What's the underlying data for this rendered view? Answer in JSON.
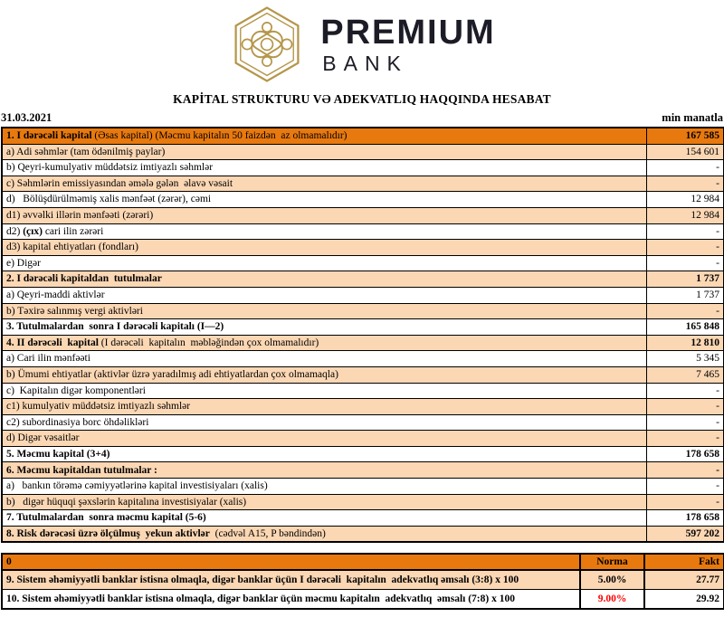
{
  "logo": {
    "brand_top": "PREMIUM",
    "brand_bottom": "BANK"
  },
  "title": "KAPİTAL STRUKTURU VƏ ADEKVATLIQ HAQQINDA HESABAT",
  "date": "31.03.2021",
  "unit_label": "min manatla",
  "colors": {
    "orange": "#E8790F",
    "peach": "#FBD7B4",
    "red": "#FF0000",
    "gold": "#B5964A",
    "logo_text": "#1C1C26"
  },
  "main_table": {
    "rows": [
      {
        "bg": "orange",
        "indent": 0,
        "value": "167 585",
        "value_bold": true,
        "segments": [
          {
            "t": "1. I dərəcəli kapital",
            "b": true
          },
          {
            "t": " (Əsas kapital) (Məcmu kapitalın 50 faizdən  az olmamalıdır)",
            "b": false
          }
        ]
      },
      {
        "bg": "peach",
        "indent": 1,
        "value": "154 601",
        "value_bold": false,
        "segments": [
          {
            "t": "a) Adi səhmlər (tam ödənilmiş paylar)",
            "b": false
          }
        ]
      },
      {
        "bg": "white",
        "indent": 1,
        "value": "-",
        "value_bold": false,
        "segments": [
          {
            "t": "b) Qeyri-kumulyativ müddətsiz imtiyazlı səhmlər",
            "b": false
          }
        ]
      },
      {
        "bg": "peach",
        "indent": 1,
        "value": "-",
        "value_bold": false,
        "segments": [
          {
            "t": "c) Səhmlərin emissiyasından əmələ gələn  əlavə vəsait",
            "b": false
          }
        ]
      },
      {
        "bg": "white",
        "indent": 1,
        "value": "12 984",
        "value_bold": false,
        "segments": [
          {
            "t": "d)   Bölüşdürülməmiş xalis mənfəət (zərər), cəmi",
            "b": false
          }
        ]
      },
      {
        "bg": "peach",
        "indent": 2,
        "value": "12 984",
        "value_bold": false,
        "segments": [
          {
            "t": "d1) əvvəlki illərin mənfəəti (zərəri)",
            "b": false
          }
        ]
      },
      {
        "bg": "white",
        "indent": 2,
        "value": "-",
        "value_bold": false,
        "segments": [
          {
            "t": "d2) ",
            "b": false
          },
          {
            "t": "(çıx)",
            "b": true
          },
          {
            "t": " cari ilin zərəri",
            "b": false
          }
        ]
      },
      {
        "bg": "peach",
        "indent": 2,
        "value": "-",
        "value_bold": false,
        "segments": [
          {
            "t": "d3) kapital ehtiyatları (fondları)",
            "b": false
          }
        ]
      },
      {
        "bg": "white",
        "indent": 1,
        "value": "-",
        "value_bold": false,
        "segments": [
          {
            "t": "e) Digər",
            "b": false
          }
        ]
      },
      {
        "bg": "peach",
        "indent": 0,
        "value": "1 737",
        "value_bold": true,
        "segments": [
          {
            "t": "2. I dərəcəli kapitaldan  tutulmalar",
            "b": true
          }
        ]
      },
      {
        "bg": "white",
        "indent": 1,
        "value": "1 737",
        "value_bold": false,
        "segments": [
          {
            "t": "a) Qeyri-maddi aktivlər",
            "b": false
          }
        ]
      },
      {
        "bg": "peach",
        "indent": 1,
        "value": "-",
        "value_bold": false,
        "segments": [
          {
            "t": "b) Təxirə salınmış vergi aktivləri",
            "b": false
          }
        ]
      },
      {
        "bg": "white",
        "indent": 0,
        "value": "165 848",
        "value_bold": true,
        "segments": [
          {
            "t": "3. Tutulmalardan  sonra I dərəcəli kapitalı (I—2)",
            "b": true
          }
        ]
      },
      {
        "bg": "peach",
        "indent": 0,
        "value": "12 810",
        "value_bold": true,
        "segments": [
          {
            "t": "4. II dərəcəli  kapital",
            "b": true
          },
          {
            "t": " (I dərəcəli  kapitalın  məbləğindən çox olmamalıdır)",
            "b": false
          }
        ]
      },
      {
        "bg": "white",
        "indent": 1,
        "value": "5 345",
        "value_bold": false,
        "segments": [
          {
            "t": "a) Cari ilin mənfəəti",
            "b": false
          }
        ]
      },
      {
        "bg": "peach",
        "indent": 1,
        "value": "7 465",
        "value_bold": false,
        "segments": [
          {
            "t": "b) Ümumi ehtiyatlar (aktivlər üzrə yaradılmış adi ehtiyatlardan çox olmamaqla)",
            "b": false
          }
        ]
      },
      {
        "bg": "white",
        "indent": 1,
        "value": "-",
        "value_bold": false,
        "segments": [
          {
            "t": "c)  Kapitalın digər komponentləri",
            "b": false
          }
        ]
      },
      {
        "bg": "peach",
        "indent": 2,
        "value": "-",
        "value_bold": false,
        "segments": [
          {
            "t": "c1) kumulyativ müddətsiz imtiyazlı səhmlər",
            "b": false
          }
        ]
      },
      {
        "bg": "white",
        "indent": 2,
        "value": "-",
        "value_bold": false,
        "segments": [
          {
            "t": "c2) subordinasiya borc öhdəlikləri",
            "b": false
          }
        ]
      },
      {
        "bg": "peach",
        "indent": 1,
        "value": "-",
        "value_bold": false,
        "segments": [
          {
            "t": "d) Digər vəsaitlər",
            "b": false
          }
        ]
      },
      {
        "bg": "white",
        "indent": 0,
        "value": "178 658",
        "value_bold": true,
        "segments": [
          {
            "t": "5. Məcmu kapital (3+4)",
            "b": true
          }
        ]
      },
      {
        "bg": "peach",
        "indent": 0,
        "value": "-",
        "value_bold": true,
        "segments": [
          {
            "t": "6. Məcmu kapitaldan tutulmalar :",
            "b": true
          }
        ]
      },
      {
        "bg": "white",
        "indent": 1,
        "value": "-",
        "value_bold": false,
        "segments": [
          {
            "t": "a)   bankın törəmə cəmiyyətlərinə kapital investisiyaları (xalis)",
            "b": false
          }
        ]
      },
      {
        "bg": "peach",
        "indent": 1,
        "value": "-",
        "value_bold": false,
        "segments": [
          {
            "t": "b)   digər hüquqi şəxslərin kapitalına investisiyalar (xalis)",
            "b": false
          }
        ]
      },
      {
        "bg": "white",
        "indent": 0,
        "value": "178 658",
        "value_bold": true,
        "segments": [
          {
            "t": "7. Tutulmalardan  sonra məcmu kapital (5-6)",
            "b": true
          }
        ]
      },
      {
        "bg": "peach",
        "indent": 0,
        "value": "597 202",
        "value_bold": true,
        "segments": [
          {
            "t": "8. Risk dərəcəsi üzrə ölçülmuş  yekun aktivlər",
            "b": true
          },
          {
            "t": "  (cədvəl A15, P bəndindən)",
            "b": false
          }
        ]
      }
    ]
  },
  "ratio_table": {
    "header": {
      "col0": "0",
      "norma": "Norma",
      "fakt": "Fakt"
    },
    "rows": [
      {
        "bg": "peach",
        "norma_red": false,
        "label": "9. Sistem əhəmiyyətli banklar istisna olmaqla, digər banklar üçün I dərəcəli  kapitalın  adekvatlıq əmsalı (3:8) x 100",
        "norma": "5.00%",
        "fakt": "27.77"
      },
      {
        "bg": "white",
        "norma_red": true,
        "label": "10. Sistem əhəmiyyətli banklar istisna olmaqla, digər banklar üçün məcmu kapitalın  adekvatlıq  əmsalı (7:8) x 100",
        "norma": "9.00%",
        "fakt": "29.92"
      }
    ]
  }
}
